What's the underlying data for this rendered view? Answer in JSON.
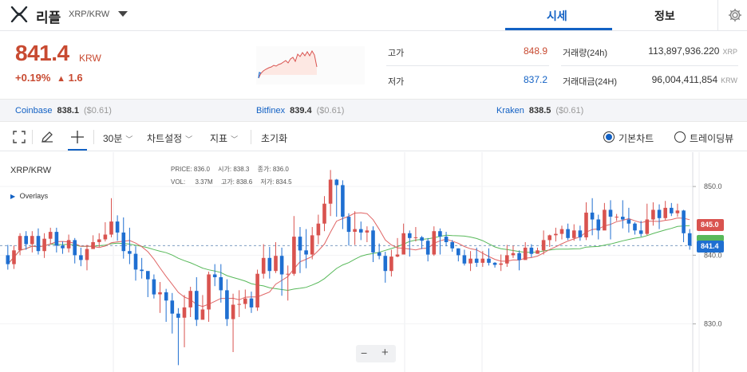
{
  "header": {
    "coin_name": "리플",
    "pair": "XRP/KRW",
    "tabs": [
      {
        "label": "시세",
        "active": true
      },
      {
        "label": "정보",
        "active": false
      }
    ]
  },
  "price": {
    "current": "841.4",
    "unit": "KRW",
    "change_pct": "+0.19%",
    "change_arrow": "▲",
    "change_amount": "1.6"
  },
  "stats": {
    "high_label": "고가",
    "high_value": "848.9",
    "low_label": "저가",
    "low_value": "837.2",
    "volume_label": "거래량(24h)",
    "volume_value": "113,897,936.220",
    "volume_unit": "XRP",
    "amount_label": "거래대금(24H)",
    "amount_value": "96,004,411,854",
    "amount_unit": "KRW"
  },
  "exchanges": [
    {
      "name": "Coinbase",
      "price": "838.1",
      "diff": "($0.61)"
    },
    {
      "name": "Bitfinex",
      "price": "839.4",
      "diff": "($0.61)"
    },
    {
      "name": "Kraken",
      "price": "838.5",
      "diff": "($0.61)"
    }
  ],
  "toolbar": {
    "interval": "30분",
    "chart_settings": "차트설정",
    "indicators": "지표",
    "reset": "초기화",
    "basic_chart": "기본차트",
    "tradingview": "트레이딩뷰"
  },
  "chart": {
    "symbol": "XRP/KRW",
    "overlays_label": "Overlays",
    "legend": {
      "price_lbl": "PRICE:",
      "price": "836.0",
      "open_lbl": "시가:",
      "open": "838.3",
      "close_lbl": "종가:",
      "close": "836.0",
      "vol_lbl": "VOL:",
      "vol": "3.37M",
      "high_lbl": "고가:",
      "high": "838.6",
      "low_lbl": "저가:",
      "low": "834.5"
    },
    "y_ticks": [
      "850.0",
      "840.0",
      "830.0"
    ],
    "badge_red": "845.0",
    "badge_blue": "841.4",
    "zoom_minus": "−",
    "zoom_plus": "+",
    "colors": {
      "up": "#d9534f",
      "down": "#1f6fd1",
      "ma_red": "#e06666",
      "ma_green": "#58b95a"
    }
  },
  "chart_data": {
    "type": "candlestick",
    "y_range": [
      823,
      855
    ],
    "candles": [
      [
        840.0,
        838.7,
        841.5,
        837.9
      ],
      [
        838.7,
        840.7,
        841.4,
        838.0
      ],
      [
        840.7,
        842.8,
        843.2,
        840.0
      ],
      [
        842.8,
        841.6,
        843.5,
        840.8
      ],
      [
        841.6,
        842.8,
        843.5,
        840.4
      ],
      [
        842.8,
        840.6,
        843.9,
        840.1
      ],
      [
        840.6,
        842.4,
        843.2,
        839.6
      ],
      [
        842.4,
        843.4,
        844.0,
        841.6
      ],
      [
        843.4,
        841.4,
        844.0,
        840.4
      ],
      [
        841.4,
        841.0,
        842.0,
        840.2
      ],
      [
        841.0,
        842.2,
        843.0,
        840.4
      ],
      [
        842.2,
        840.0,
        842.5,
        838.8
      ],
      [
        840.0,
        839.3,
        841.1,
        838.4
      ],
      [
        839.3,
        840.9,
        841.5,
        837.8
      ],
      [
        840.9,
        841.9,
        842.9,
        841.0
      ],
      [
        841.9,
        842.3,
        843.2,
        841.2
      ],
      [
        842.3,
        843.0,
        844.8,
        842.0
      ],
      [
        843.0,
        844.9,
        848.3,
        842.6
      ],
      [
        844.9,
        843.3,
        845.8,
        842.1
      ],
      [
        843.3,
        840.6,
        845.5,
        839.5
      ],
      [
        840.6,
        840.2,
        844.0,
        838.7
      ],
      [
        840.2,
        837.9,
        841.3,
        836.3
      ],
      [
        837.9,
        837.7,
        839.6,
        836.6
      ],
      [
        837.7,
        836.5,
        837.4,
        833.9
      ],
      [
        836.5,
        834.3,
        837.2,
        833.7
      ],
      [
        834.3,
        834.6,
        836.1,
        831.6
      ],
      [
        834.6,
        833.4,
        835.1,
        830.3
      ],
      [
        833.4,
        831.5,
        834.5,
        828.6
      ],
      [
        831.5,
        830.9,
        832.3,
        824.0
      ],
      [
        830.9,
        832.4,
        834.2,
        826.6
      ],
      [
        832.4,
        834.8,
        835.4,
        831.0
      ],
      [
        834.8,
        830.6,
        836.8,
        829.7
      ],
      [
        830.6,
        832.1,
        834.2,
        831.4
      ],
      [
        832.1,
        837.2,
        837.6,
        830.3
      ],
      [
        837.2,
        836.8,
        838.7,
        835.5
      ],
      [
        836.8,
        834.9,
        838.7,
        833.1
      ],
      [
        834.9,
        830.7,
        836.5,
        829.7
      ],
      [
        830.7,
        832.8,
        834.4,
        825.9
      ],
      [
        832.8,
        832.9,
        834.9,
        831.0
      ],
      [
        832.9,
        833.7,
        835.0,
        832.2
      ],
      [
        833.7,
        832.4,
        834.7,
        831.6
      ],
      [
        832.4,
        837.3,
        837.9,
        831.9
      ],
      [
        837.3,
        839.6,
        841.6,
        836.6
      ],
      [
        839.6,
        837.7,
        841.2,
        836.6
      ],
      [
        837.7,
        839.9,
        841.9,
        837.4
      ],
      [
        839.9,
        837.2,
        841.1,
        834.1
      ],
      [
        837.2,
        837.3,
        838.5,
        833.4
      ],
      [
        837.3,
        842.7,
        845.7,
        837.0
      ],
      [
        842.7,
        840.7,
        844.1,
        837.4
      ],
      [
        840.7,
        840.1,
        843.8,
        838.1
      ],
      [
        840.1,
        842.9,
        844.1,
        839.4
      ],
      [
        842.9,
        844.6,
        845.9,
        841.6
      ],
      [
        844.6,
        847.5,
        848.6,
        843.5
      ],
      [
        847.5,
        851.0,
        852.4,
        845.7
      ],
      [
        851.0,
        850.2,
        851.1,
        845.6
      ],
      [
        850.2,
        845.6,
        850.9,
        843.8
      ],
      [
        845.6,
        843.4,
        846.1,
        841.4
      ],
      [
        843.4,
        843.8,
        846.4,
        841.5
      ],
      [
        843.8,
        843.3,
        844.9,
        842.2
      ],
      [
        843.3,
        843.6,
        844.2,
        841.9
      ],
      [
        843.6,
        840.4,
        844.2,
        839.0
      ],
      [
        840.4,
        839.9,
        841.7,
        839.4
      ],
      [
        839.9,
        837.7,
        840.5,
        836.0
      ],
      [
        837.7,
        839.8,
        840.8,
        836.9
      ],
      [
        839.8,
        840.1,
        842.5,
        839.7
      ],
      [
        840.1,
        843.2,
        844.6,
        840.2
      ],
      [
        843.2,
        842.5,
        843.6,
        839.8
      ],
      [
        842.5,
        842.6,
        844.1,
        842.0
      ],
      [
        842.6,
        842.1,
        842.8,
        840.9
      ],
      [
        842.1,
        840.1,
        842.5,
        839.1
      ],
      [
        840.1,
        843.5,
        844.2,
        839.9
      ],
      [
        843.5,
        842.7,
        843.9,
        840.1
      ],
      [
        842.7,
        841.9,
        843.4,
        841.3
      ],
      [
        841.9,
        841.0,
        842.2,
        840.5
      ],
      [
        841.0,
        840.0,
        841.0,
        839.1
      ],
      [
        840.0,
        838.8,
        840.8,
        838.5
      ],
      [
        838.8,
        839.5,
        840.6,
        837.7
      ],
      [
        839.5,
        838.9,
        841.1,
        838.3
      ],
      [
        838.9,
        839.5,
        840.6,
        838.3
      ],
      [
        839.5,
        838.9,
        841.0,
        838.5
      ],
      [
        838.9,
        838.6,
        839.0,
        838.2
      ],
      [
        838.6,
        838.8,
        840.1,
        837.7
      ],
      [
        838.8,
        840.0,
        841.5,
        838.3
      ],
      [
        840.0,
        840.3,
        841.4,
        839.6
      ],
      [
        840.3,
        839.3,
        840.7,
        837.8
      ],
      [
        839.3,
        841.1,
        841.9,
        839.4
      ],
      [
        841.1,
        840.2,
        841.6,
        839.7
      ],
      [
        840.2,
        840.7,
        841.1,
        840.2
      ],
      [
        840.7,
        842.2,
        843.6,
        840.1
      ],
      [
        842.2,
        842.9,
        843.0,
        841.2
      ],
      [
        842.9,
        843.1,
        844.0,
        842.0
      ],
      [
        843.1,
        843.8,
        844.3,
        842.3
      ],
      [
        843.8,
        842.5,
        844.6,
        842.2
      ],
      [
        842.5,
        843.6,
        844.5,
        842.1
      ],
      [
        843.6,
        842.6,
        844.3,
        842.1
      ],
      [
        842.6,
        846.2,
        847.7,
        842.2
      ],
      [
        846.2,
        845.2,
        848.3,
        842.9
      ],
      [
        845.2,
        843.6,
        845.9,
        842.3
      ],
      [
        843.6,
        846.6,
        847.6,
        843.7
      ],
      [
        846.6,
        845.6,
        848.0,
        842.3
      ],
      [
        845.6,
        845.6,
        846.0,
        845.0
      ],
      [
        845.6,
        845.2,
        848.0,
        843.9
      ],
      [
        845.2,
        844.6,
        846.9,
        843.3
      ],
      [
        844.6,
        843.6,
        844.8,
        843.0
      ],
      [
        843.6,
        843.1,
        845.0,
        842.7
      ],
      [
        843.1,
        845.2,
        847.5,
        842.9
      ],
      [
        845.2,
        846.6,
        847.7,
        844.3
      ],
      [
        846.6,
        845.4,
        847.4,
        843.8
      ],
      [
        845.4,
        846.9,
        847.9,
        845.1
      ],
      [
        846.9,
        846.1,
        847.6,
        845.7
      ],
      [
        846.1,
        846.5,
        847.5,
        845.6
      ],
      [
        846.5,
        843.2,
        846.6,
        841.9
      ],
      [
        843.2,
        841.4,
        843.8,
        840.8
      ]
    ]
  }
}
